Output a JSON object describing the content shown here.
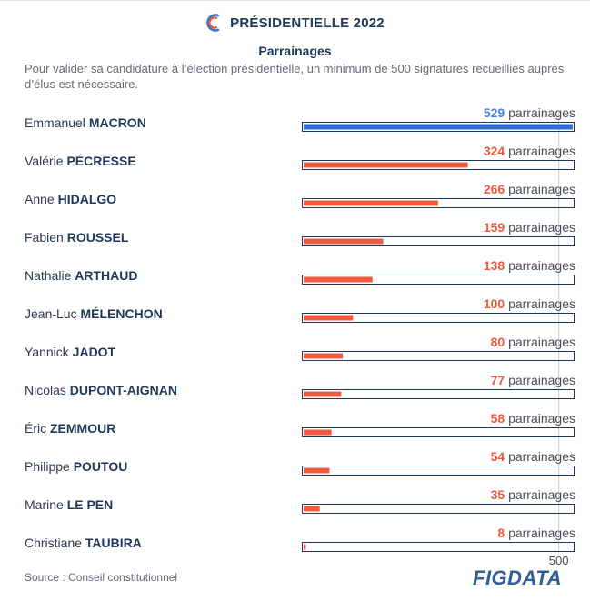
{
  "header": {
    "title": "PRÉSIDENTIELLE 2022",
    "subtitle": "Parrainages",
    "description": "Pour valider sa candidature à l’élection présidentielle, un minimum de 500 signatures recueillies auprès d’élus est nécessaire."
  },
  "footer": {
    "source": "Source : Conseil constitutionnel",
    "brand": "FIGDATA"
  },
  "colors": {
    "highlight": "#2f6fd0",
    "bar": "#ef5b3f",
    "outline": "#1f3758",
    "value_blue": "#4a86d8",
    "value_red": "#ef5b3f"
  },
  "chart_data": {
    "type": "bar",
    "orientation": "horizontal",
    "unit_label": "parrainages",
    "threshold": 500,
    "threshold_label": "500",
    "xlim": [
      0,
      529
    ],
    "rows": [
      {
        "first": "Emmanuel",
        "last": "MACRON",
        "value": 529,
        "highlight": true
      },
      {
        "first": "Valérie",
        "last": "PÉCRESSE",
        "value": 324
      },
      {
        "first": "Anne",
        "last": "HIDALGO",
        "value": 266
      },
      {
        "first": "Fabien",
        "last": "ROUSSEL",
        "value": 159
      },
      {
        "first": "Nathalie",
        "last": "ARTHAUD",
        "value": 138
      },
      {
        "first": "Jean-Luc",
        "last": "MÉLENCHON",
        "value": 100
      },
      {
        "first": "Yannick",
        "last": "JADOT",
        "value": 80
      },
      {
        "first": "Nicolas",
        "last": "DUPONT-AIGNAN",
        "value": 77
      },
      {
        "first": "Éric",
        "last": "ZEMMOUR",
        "value": 58
      },
      {
        "first": "Philippe",
        "last": "POUTOU",
        "value": 54
      },
      {
        "first": "Marine",
        "last": "LE PEN",
        "value": 35
      },
      {
        "first": "Christiane",
        "last": "TAUBIRA",
        "value": 8
      }
    ]
  }
}
